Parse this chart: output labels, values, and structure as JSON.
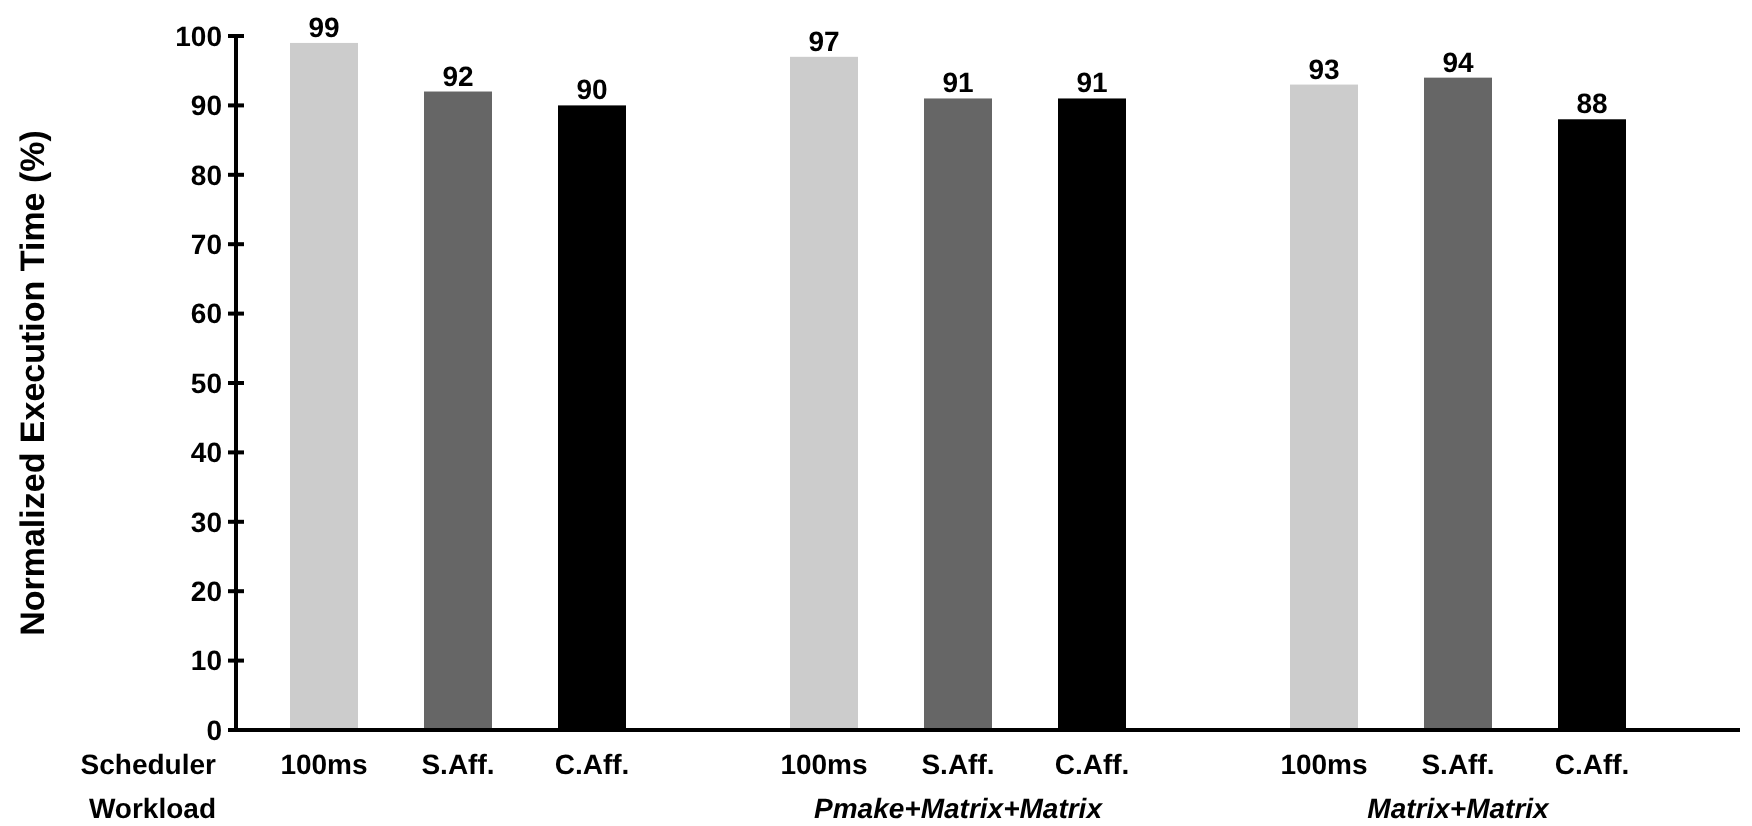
{
  "chart_data": {
    "type": "bar",
    "ylabel": "Normalized Execution Time (%)",
    "xlabel": "Scheduler",
    "categories": [
      "100ms",
      "S.Aff.",
      "C.Aff.",
      "100ms",
      "S.Aff.",
      "C.Aff.",
      "100ms",
      "S.Aff.",
      "C.Aff."
    ],
    "values": [
      99,
      92,
      90,
      97,
      91,
      91,
      93,
      94,
      88
    ],
    "colors": [
      "#cccccc",
      "#666666",
      "#000000",
      "#cccccc",
      "#666666",
      "#000000",
      "#cccccc",
      "#666666",
      "#000000"
    ],
    "ylim": [
      0,
      100
    ],
    "yticks": [
      0,
      10,
      20,
      30,
      40,
      50,
      60,
      70,
      80,
      90,
      100
    ],
    "data_labels": true,
    "annotations": [
      "Workload",
      "Pmake+Matrix+Matrix",
      "Matrix+Matrix"
    ]
  }
}
